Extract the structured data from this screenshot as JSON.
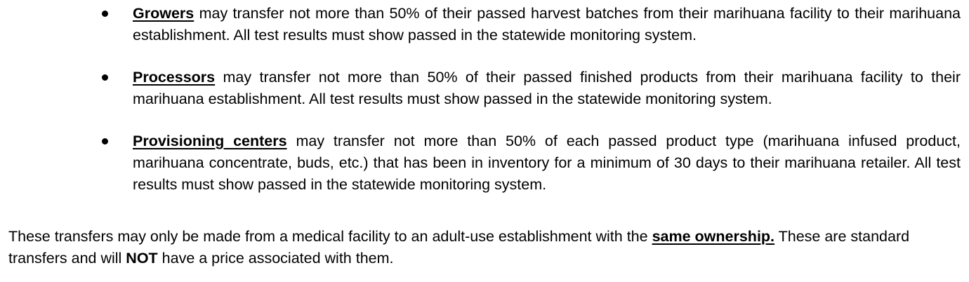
{
  "bullets": [
    {
      "term": "Growers",
      "text": " may transfer not more than 50% of their passed harvest batches from their marihuana facility to their marihuana establishment.  All test results must show passed in the statewide monitoring system."
    },
    {
      "term": "Processors",
      "text": " may transfer not more than 50% of their passed finished products from their marihuana facility to their marihuana establishment. All test results must show passed in the statewide monitoring system."
    },
    {
      "term": "Provisioning centers",
      "text": " may transfer not more than 50% of each passed product type (marihuana infused product, marihuana concentrate, buds, etc.) that has been in inventory for a minimum of 30 days to their marihuana retailer.  All test results must show passed in the statewide monitoring system."
    }
  ],
  "closing": {
    "part1": "These transfers may only be made from a medical facility to an adult-use establishment with the ",
    "emphasis_same": "same ownership.",
    "part2": " These are standard transfers and will ",
    "emphasis_not": "NOT",
    "part3": " have a price associated with them."
  }
}
